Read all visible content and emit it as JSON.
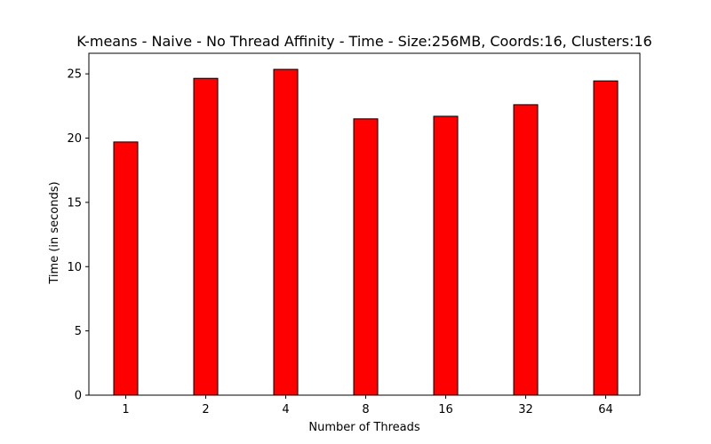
{
  "chart_data": {
    "type": "bar",
    "title": "K-means - Naive - No Thread Affinity - Time - Size:256MB, Coords:16, Clusters:16",
    "xlabel": "Number of Threads",
    "ylabel": "Time (in seconds)",
    "categories": [
      "1",
      "2",
      "4",
      "8",
      "16",
      "32",
      "64"
    ],
    "values": [
      19.7,
      24.65,
      25.35,
      21.5,
      21.7,
      22.6,
      24.45
    ],
    "ylim": [
      0,
      26.6
    ],
    "yticks": [
      0,
      5,
      10,
      15,
      20,
      25
    ],
    "bar_color": "#ff0000",
    "edge_color": "#000000",
    "grid": false,
    "legend": "none"
  }
}
